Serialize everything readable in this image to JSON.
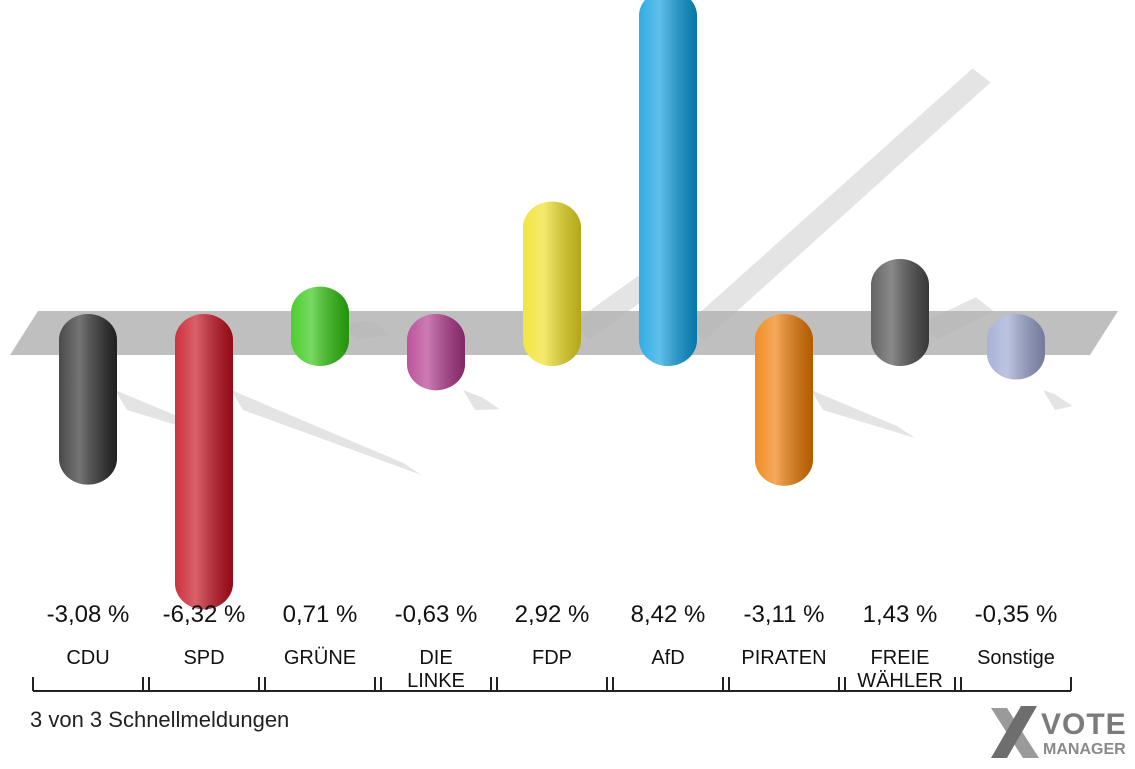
{
  "chart_data": {
    "type": "bar",
    "categories": [
      "CDU",
      "SPD",
      "GRÜNE",
      "DIE LINKE",
      "FDP",
      "AfD",
      "PIRATEN",
      "FREIE WÄHLER",
      "Sonstige"
    ],
    "category_labels": [
      [
        "CDU"
      ],
      [
        "SPD"
      ],
      [
        "GRÜNE"
      ],
      [
        "DIE",
        "LINKE"
      ],
      [
        "FDP"
      ],
      [
        "AfD"
      ],
      [
        "PIRATEN"
      ],
      [
        "FREIE",
        "WÄHLER"
      ],
      [
        "Sonstige"
      ]
    ],
    "values": [
      -3.08,
      -6.32,
      0.71,
      -0.63,
      2.92,
      8.42,
      -3.11,
      1.43,
      -0.35
    ],
    "value_labels": [
      "-3,08 %",
      "-6,32 %",
      "0,71 %",
      "-0,63 %",
      "2,92 %",
      "8,42 %",
      "-3,11 %",
      "1,43 %",
      "-0,35 %"
    ],
    "colors": [
      "#2a2a2a",
      "#c40c1c",
      "#2ec40c",
      "#b0358a",
      "#f0e020",
      "#0a9ee0",
      "#ee7a00",
      "#4a4a4a",
      "#9aa4d0"
    ],
    "baseline": 0
  },
  "footer": {
    "status": "3 von 3 Schnellmeldungen"
  },
  "logo": {
    "line1": "VOTE",
    "line2": "MANAGER"
  }
}
